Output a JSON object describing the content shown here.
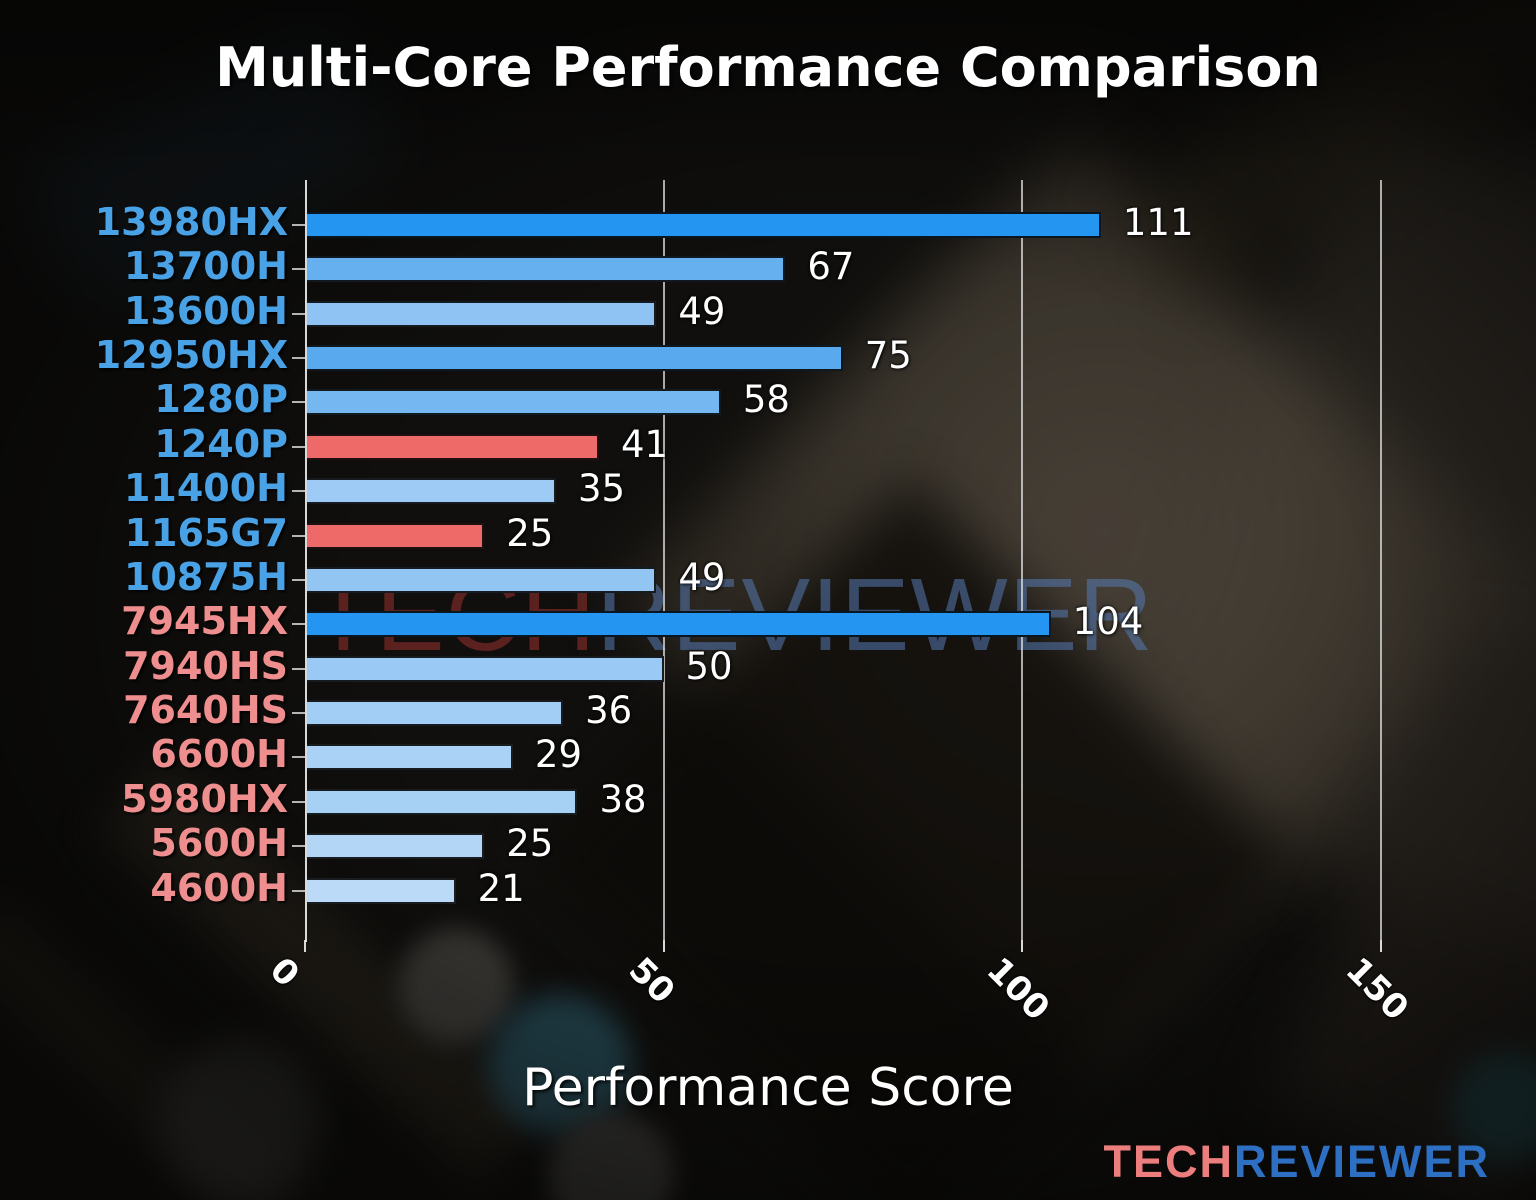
{
  "chart_data": {
    "type": "bar",
    "orientation": "horizontal",
    "title": "Multi-Core Performance Comparison",
    "xlabel": "Performance Score",
    "xlim": [
      0,
      150
    ],
    "xticks": [
      0,
      50,
      100,
      150
    ],
    "grid": true,
    "legend": "none",
    "categories": [
      "13980HX",
      "13700H",
      "13600H",
      "12950HX",
      "1280P",
      "1240P",
      "11400H",
      "1165G7",
      "10875H",
      "7945HX",
      "7940HS",
      "7640HS",
      "6600H",
      "5980HX",
      "5600H",
      "4600H"
    ],
    "values": [
      111,
      67,
      49,
      75,
      58,
      41,
      35,
      25,
      49,
      104,
      50,
      36,
      29,
      38,
      25,
      21
    ],
    "bar_colors": [
      "#2595f2",
      "#66b0f0",
      "#8ec3f4",
      "#58a9ee",
      "#74b7f1",
      "#ee6a68",
      "#9ecbf5",
      "#ee6a68",
      "#93c5f3",
      "#2595f2",
      "#99c9f4",
      "#a2cdf5",
      "#aad2f6",
      "#a7d0f5",
      "#b3d6f7",
      "#bbdaf8"
    ],
    "category_colors": [
      "#4aa2e6",
      "#4aa2e6",
      "#4aa2e6",
      "#4aa2e6",
      "#4aa2e6",
      "#4aa2e6",
      "#4aa2e6",
      "#4aa2e6",
      "#4aa2e6",
      "#ef8e8e",
      "#ef8e8e",
      "#ef8e8e",
      "#ef8e8e",
      "#ef8e8e",
      "#ef8e8e",
      "#ef8e8e"
    ],
    "value_label_color": "#ffffff",
    "grid_color": "#e8e8e8"
  },
  "watermark": {
    "part1": "TECH",
    "part2": "REVIEWER"
  },
  "logo": {
    "part1": "TECH",
    "part2": "REVIEWER",
    "part1_color": "#ed7e7e",
    "part2_color": "#2d6fc3"
  }
}
